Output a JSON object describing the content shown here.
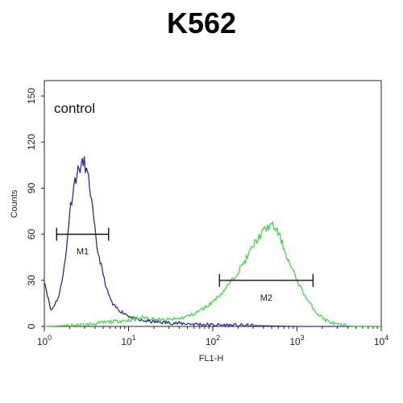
{
  "chart_data": {
    "type": "histogram",
    "title": "K562",
    "xlabel": "FL1-H",
    "ylabel": "Counts",
    "x_scale": "log",
    "xlim": [
      1,
      10000
    ],
    "ylim": [
      0,
      160
    ],
    "x_ticks": [
      {
        "value": 1,
        "base": "10",
        "exp": "0"
      },
      {
        "value": 10,
        "base": "10",
        "exp": "1"
      },
      {
        "value": 100,
        "base": "10",
        "exp": "2"
      },
      {
        "value": 1000,
        "base": "10",
        "exp": "3"
      },
      {
        "value": 10000,
        "base": "10",
        "exp": "4"
      }
    ],
    "y_ticks": [
      0,
      30,
      60,
      90,
      120,
      150
    ],
    "annotation": "control",
    "grid": false,
    "series": [
      {
        "name": "control",
        "color": "#2a2aa8",
        "x": [
          1,
          1.2,
          1.5,
          1.8,
          2.0,
          2.3,
          2.6,
          2.8,
          3.0,
          3.2,
          3.5,
          3.8,
          4.2,
          4.8,
          5.5,
          6.5,
          8,
          10,
          13,
          20,
          40,
          100,
          1000,
          10000
        ],
        "y": [
          30,
          10,
          20,
          45,
          75,
          95,
          103,
          105,
          107,
          100,
          90,
          72,
          52,
          38,
          24,
          14,
          10,
          7,
          4,
          3,
          2,
          1,
          0,
          0
        ]
      },
      {
        "color": "#3ddc3d",
        "x": [
          1,
          3,
          6,
          10,
          15,
          25,
          40,
          60,
          90,
          130,
          180,
          250,
          320,
          400,
          480,
          560,
          650,
          800,
          1000,
          1300,
          1700,
          2200,
          3000,
          5000,
          10000
        ],
        "y": [
          0,
          1,
          3,
          4,
          6,
          4,
          5,
          8,
          14,
          22,
          32,
          44,
          55,
          62,
          66,
          64,
          56,
          42,
          30,
          18,
          9,
          4,
          1,
          0,
          0
        ]
      }
    ],
    "gates": [
      {
        "label": "M1",
        "x1": 1.4,
        "x2": 5.8,
        "y": 60
      },
      {
        "label": "M2",
        "x1": 120,
        "x2": 1550,
        "y": 30
      }
    ]
  }
}
